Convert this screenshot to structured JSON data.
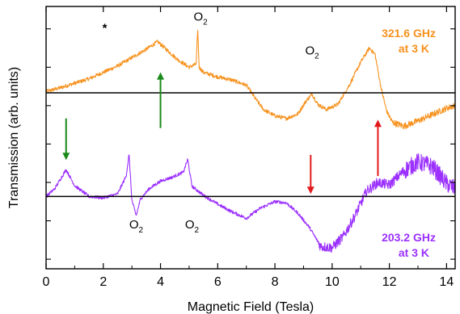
{
  "chart_data": {
    "type": "line",
    "xlabel": "Magnetic Field (Tesla)",
    "ylabel": "Transmission (arb. units)",
    "xlim": [
      0,
      14.3
    ],
    "x_ticks": [
      0,
      2,
      4,
      6,
      8,
      10,
      12,
      14
    ],
    "grid": false,
    "y_tick_labels": "none",
    "series": [
      {
        "name": "321.6 GHz at 3 K",
        "label_line1": "321.6 GHz",
        "label_line2": "at 3 K",
        "color": "#f7921e",
        "baseline": 0,
        "x": [
          0,
          0.5,
          1,
          1.5,
          2,
          2.5,
          3,
          3.5,
          3.9,
          4.2,
          4.6,
          5.0,
          5.25,
          5.3,
          5.35,
          5.5,
          6,
          6.5,
          7,
          7.3,
          7.6,
          8.0,
          8.4,
          8.8,
          9.1,
          9.3,
          9.5,
          9.8,
          10.2,
          10.6,
          11.0,
          11.3,
          11.5,
          11.7,
          11.9,
          12.1,
          12.5,
          13,
          13.5,
          14,
          14.3
        ],
        "y": [
          0.02,
          0.08,
          0.15,
          0.22,
          0.32,
          0.42,
          0.55,
          0.68,
          0.8,
          0.68,
          0.52,
          0.4,
          0.45,
          1.02,
          0.4,
          0.32,
          0.25,
          0.2,
          0.12,
          -0.08,
          -0.26,
          -0.36,
          -0.4,
          -0.33,
          -0.12,
          -0.02,
          -0.18,
          -0.26,
          -0.18,
          0.12,
          0.48,
          0.7,
          0.6,
          0.1,
          -0.28,
          -0.46,
          -0.52,
          -0.44,
          -0.34,
          -0.24,
          -0.2
        ]
      },
      {
        "name": "203.2 GHz at 3 K",
        "label_line1": "203.2 GHz",
        "label_line2": "at 3 K",
        "color": "#9b30ff",
        "baseline": -1.62,
        "x": [
          0,
          0.3,
          0.7,
          1.0,
          1.5,
          2.0,
          2.5,
          2.8,
          2.9,
          3.0,
          3.15,
          3.3,
          3.6,
          4.0,
          4.4,
          4.8,
          4.95,
          5.1,
          5.5,
          6.0,
          6.5,
          7.0,
          7.5,
          8.0,
          8.4,
          8.8,
          9.2,
          9.6,
          10.0,
          10.4,
          10.8,
          11.2,
          11.6,
          12.0,
          12.5,
          13.0,
          13.5,
          14.0,
          14.3
        ],
        "y": [
          -1.62,
          -1.5,
          -1.2,
          -1.45,
          -1.62,
          -1.64,
          -1.58,
          -1.3,
          -0.96,
          -1.68,
          -1.92,
          -1.66,
          -1.5,
          -1.38,
          -1.32,
          -1.24,
          -1.04,
          -1.46,
          -1.6,
          -1.74,
          -1.86,
          -1.96,
          -1.8,
          -1.7,
          -1.72,
          -1.88,
          -2.1,
          -2.4,
          -2.42,
          -2.24,
          -1.92,
          -1.54,
          -1.4,
          -1.44,
          -1.22,
          -1.08,
          -1.15,
          -1.42,
          -1.5
        ]
      }
    ],
    "annotations": [
      {
        "text": "*",
        "x": 2.05,
        "y": 0.95
      },
      {
        "text": "O",
        "subscript": "2",
        "x": 5.4,
        "y": 1.13
      },
      {
        "text": "O",
        "subscript": "2",
        "x": 9.3,
        "y": 0.6
      },
      {
        "text": "O",
        "subscript": "2",
        "x": 3.15,
        "y": -2.12
      },
      {
        "text": "O",
        "subscript": "2",
        "x": 5.1,
        "y": -2.12
      }
    ],
    "arrows": [
      {
        "color": "#1a8a1a",
        "direction": "up",
        "x": 4.0,
        "y_from": -0.55,
        "y_to": 0.32
      },
      {
        "color": "#1a8a1a",
        "direction": "down",
        "x": 0.7,
        "y_from": -0.4,
        "y_to": -1.05
      },
      {
        "color": "#e31a1c",
        "direction": "down",
        "x": 9.25,
        "y_from": -0.97,
        "y_to": -1.58
      },
      {
        "color": "#e31a1c",
        "direction": "up",
        "x": 11.6,
        "y_from": -1.3,
        "y_to": -0.42
      }
    ]
  }
}
